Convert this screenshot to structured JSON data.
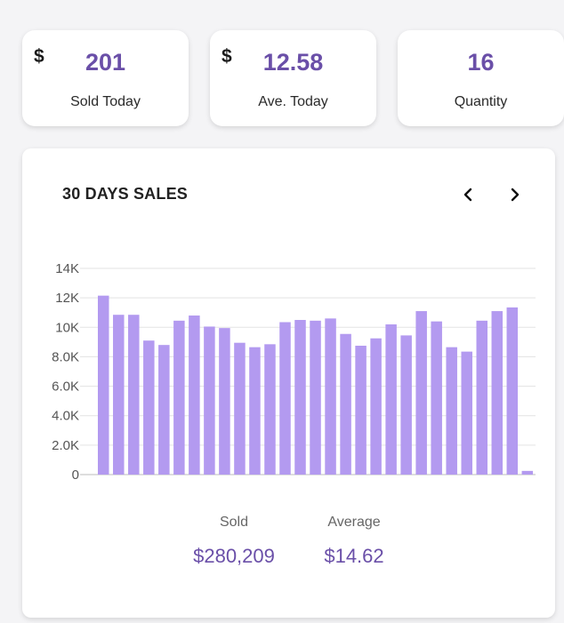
{
  "stats": [
    {
      "currency": "$",
      "value": "201",
      "label": "Sold Today"
    },
    {
      "currency": "$",
      "value": "12.58",
      "label": "Ave. Today"
    },
    {
      "currency": "",
      "value": "16",
      "label": "Quantity"
    }
  ],
  "chart": {
    "title": "30 DAYS SALES",
    "prev_icon": "chevron-left-icon",
    "next_icon": "chevron-right-icon"
  },
  "summary": {
    "sold_label": "Sold",
    "sold_value": "$280,209",
    "average_label": "Average",
    "average_value": "$14.62"
  },
  "colors": {
    "accent": "#6a4fa8",
    "bar": "#b39af0",
    "grid": "#e3e3e3"
  },
  "chart_data": {
    "type": "bar",
    "title": "30 DAYS SALES",
    "xlabel": "",
    "ylabel": "",
    "ylim": [
      0,
      14000
    ],
    "yticks": [
      "0",
      "2.0K",
      "4.0K",
      "6.0K",
      "8.0K",
      "10K",
      "12K",
      "14K"
    ],
    "ytick_values": [
      0,
      2000,
      4000,
      6000,
      8000,
      10000,
      12000,
      14000
    ],
    "values": [
      12150,
      10850,
      10850,
      9100,
      8800,
      10450,
      10800,
      10050,
      9950,
      8950,
      8650,
      8850,
      10350,
      10500,
      10450,
      10600,
      9550,
      8750,
      9250,
      10200,
      9450,
      11100,
      10400,
      8650,
      8350,
      10450,
      11100,
      11350,
      250
    ],
    "grid": true,
    "legend": "none"
  }
}
